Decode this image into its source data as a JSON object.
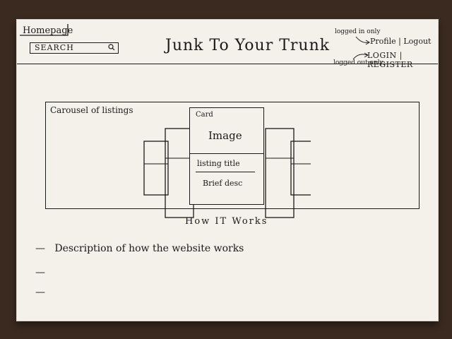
{
  "header": {
    "homepage_label": "Homepage",
    "search_placeholder": "SEARCH",
    "search_icon": "search-icon",
    "site_title": "Junk To Your Trunk",
    "logged_in_note": "logged in only",
    "logged_in_links": "Profile | Logout",
    "logged_out_note": "logged out only",
    "logged_out_links": "LOGIN | REGISTER"
  },
  "carousel": {
    "label": "Carousel of listings",
    "card_label": "Card",
    "card_image": "Image",
    "card_title": "listing title",
    "card_desc": "Brief desc"
  },
  "how_it_works": {
    "heading": "How IT Works",
    "items": [
      "Description of how the website works",
      "",
      ""
    ]
  }
}
